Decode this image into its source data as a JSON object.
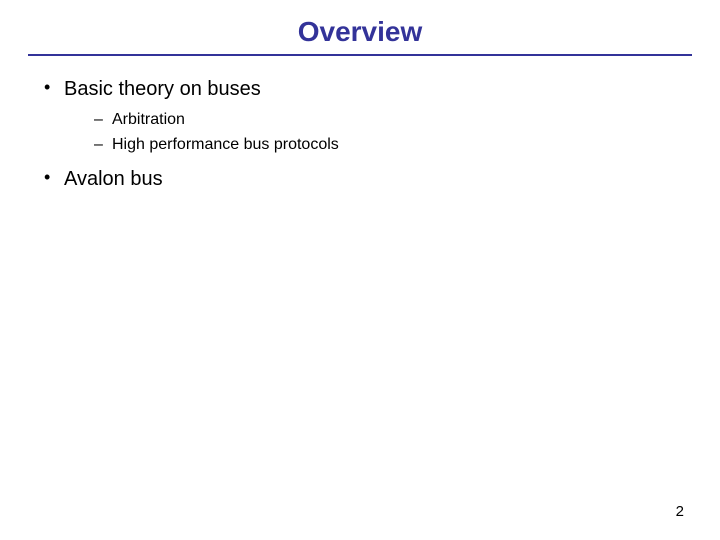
{
  "slide": {
    "title": "Overview",
    "title_color": "#333399",
    "title_fontsize": 28,
    "underline_color": "#333399",
    "background_color": "#ffffff",
    "bullets": [
      {
        "level": 1,
        "text": "Basic theory on buses",
        "children": [
          {
            "level": 2,
            "text": "Arbitration"
          },
          {
            "level": 2,
            "text": "High performance bus protocols"
          }
        ]
      },
      {
        "level": 1,
        "text": "Avalon bus",
        "children": []
      }
    ],
    "body_fontsize_l1": 20,
    "body_fontsize_l2": 16,
    "page_number": "2",
    "page_number_fontsize": 15
  }
}
